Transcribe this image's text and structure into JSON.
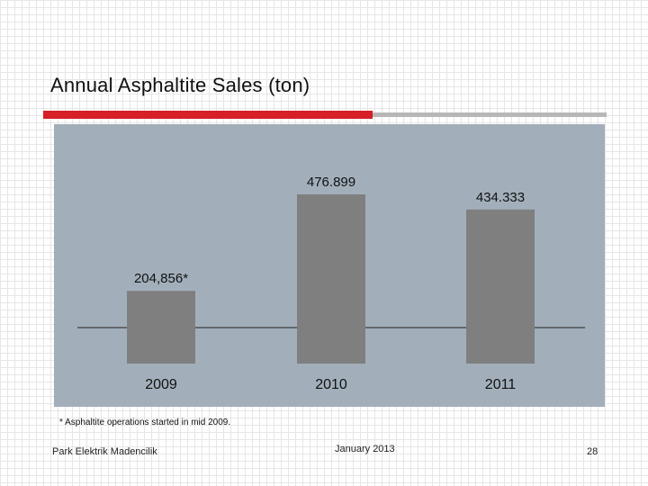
{
  "slide": {
    "title": "Annual Asphaltite Sales (ton)",
    "footnote": "* Asphaltite operations started in mid 2009.",
    "company": "Park Elektrik Madencilik",
    "date": "January 2013",
    "page_number": "28"
  },
  "colors": {
    "accent_red": "#d71f26",
    "chart_background": "#a2afbb",
    "bar_fill": "#7f7f7f"
  },
  "chart_data": {
    "type": "bar",
    "categories": [
      "2009",
      "2010",
      "2011"
    ],
    "values": [
      204856,
      476899,
      434333
    ],
    "data_labels": [
      "204,856*",
      "476.899",
      "434.333"
    ],
    "title": "",
    "xlabel": "",
    "ylabel": "",
    "ylim": [
      0,
      500000
    ],
    "grid": false,
    "legend": "none"
  }
}
